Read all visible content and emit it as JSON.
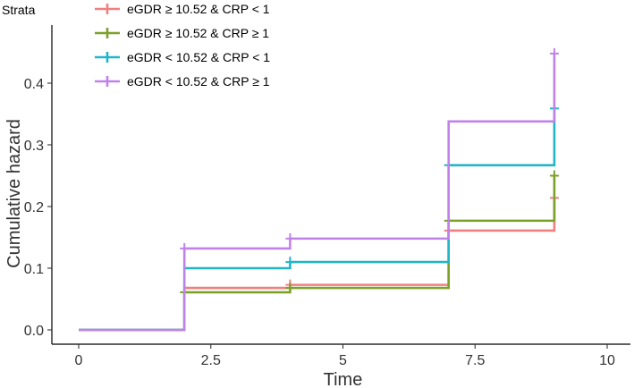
{
  "chart_data": {
    "type": "line",
    "step": true,
    "xlabel": "Time",
    "ylabel": "Cumulative hazard",
    "xlim": [
      0,
      10
    ],
    "ylim": [
      0,
      0.45
    ],
    "x_ticks": [
      0,
      2.5,
      5,
      7.5,
      10
    ],
    "x_tick_labels": [
      "0",
      "2.5",
      "5",
      "7.5",
      "10"
    ],
    "y_ticks": [
      0,
      0.1,
      0.2,
      0.3,
      0.4
    ],
    "y_tick_labels": [
      "0.0",
      "0.1",
      "0.2",
      "0.3",
      "0.4"
    ],
    "grid": false,
    "legend": {
      "title": "Strata",
      "position": "top-left"
    },
    "series": [
      {
        "name": "eGDR ≥ 10.52 & CRP < 1",
        "color": "#F08080",
        "x": [
          0,
          2,
          4,
          7,
          9,
          9
        ],
        "y": [
          0,
          0.068,
          0.073,
          0.161,
          0.161,
          0.214
        ],
        "censor": [
          [
            4,
            0.073
          ],
          [
            7,
            0.161
          ],
          [
            9,
            0.214
          ]
        ]
      },
      {
        "name": "eGDR ≥ 10.52 & CRP ≥ 1",
        "color": "#7CA12A",
        "x": [
          0,
          2,
          4,
          7,
          9,
          9
        ],
        "y": [
          0,
          0.061,
          0.068,
          0.177,
          0.177,
          0.25
        ],
        "censor": [
          [
            2,
            0.061
          ],
          [
            4,
            0.068
          ],
          [
            7,
            0.177
          ],
          [
            9,
            0.25
          ]
        ]
      },
      {
        "name": "eGDR < 10.52 & CRP < 1",
        "color": "#20B6C8",
        "x": [
          0,
          2,
          4,
          7,
          9,
          9
        ],
        "y": [
          0,
          0.1,
          0.11,
          0.267,
          0.267,
          0.359
        ],
        "censor": [
          [
            4,
            0.11
          ],
          [
            7,
            0.267
          ],
          [
            9,
            0.359
          ]
        ]
      },
      {
        "name": "eGDR < 10.52 & CRP ≥ 1",
        "color": "#C182E8",
        "x": [
          0,
          2,
          4,
          7,
          9,
          9
        ],
        "y": [
          0,
          0.132,
          0.148,
          0.338,
          0.338,
          0.448
        ],
        "censor": [
          [
            2,
            0.132
          ],
          [
            4,
            0.148
          ],
          [
            9,
            0.448
          ]
        ]
      }
    ]
  }
}
